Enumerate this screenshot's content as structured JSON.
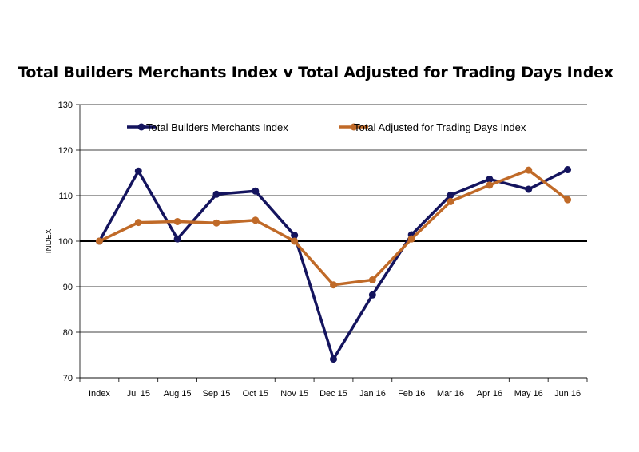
{
  "chart_data": {
    "type": "line",
    "title": "Total Builders Merchants Index v Total Adjusted for Trading Days Index",
    "xlabel": "",
    "ylabel": "INDEX",
    "ylim": [
      70,
      130
    ],
    "yticks": [
      70,
      80,
      90,
      100,
      110,
      120,
      130
    ],
    "reference_line": 100,
    "grid": "horizontal",
    "legend_position": "top",
    "categories": [
      "Index",
      "Jul 15",
      "Aug 15",
      "Sep 15",
      "Oct 15",
      "Nov 15",
      "Dec 15",
      "Jan 16",
      "Feb 16",
      "Mar 16",
      "Apr 16",
      "May 16",
      "Jun 16"
    ],
    "series": [
      {
        "name": "Total Builders Merchants Index",
        "color": "#14145e",
        "values": [
          100,
          115.4,
          100.5,
          110.3,
          111.0,
          101.3,
          74.1,
          88.2,
          101.4,
          110.1,
          113.6,
          111.4,
          115.7
        ]
      },
      {
        "name": "Total Adjusted for Trading Days Index",
        "color": "#c06a28",
        "values": [
          100,
          104.1,
          104.3,
          104.0,
          104.6,
          100.0,
          90.4,
          91.5,
          100.5,
          108.7,
          112.3,
          115.6,
          109.1
        ]
      }
    ]
  }
}
